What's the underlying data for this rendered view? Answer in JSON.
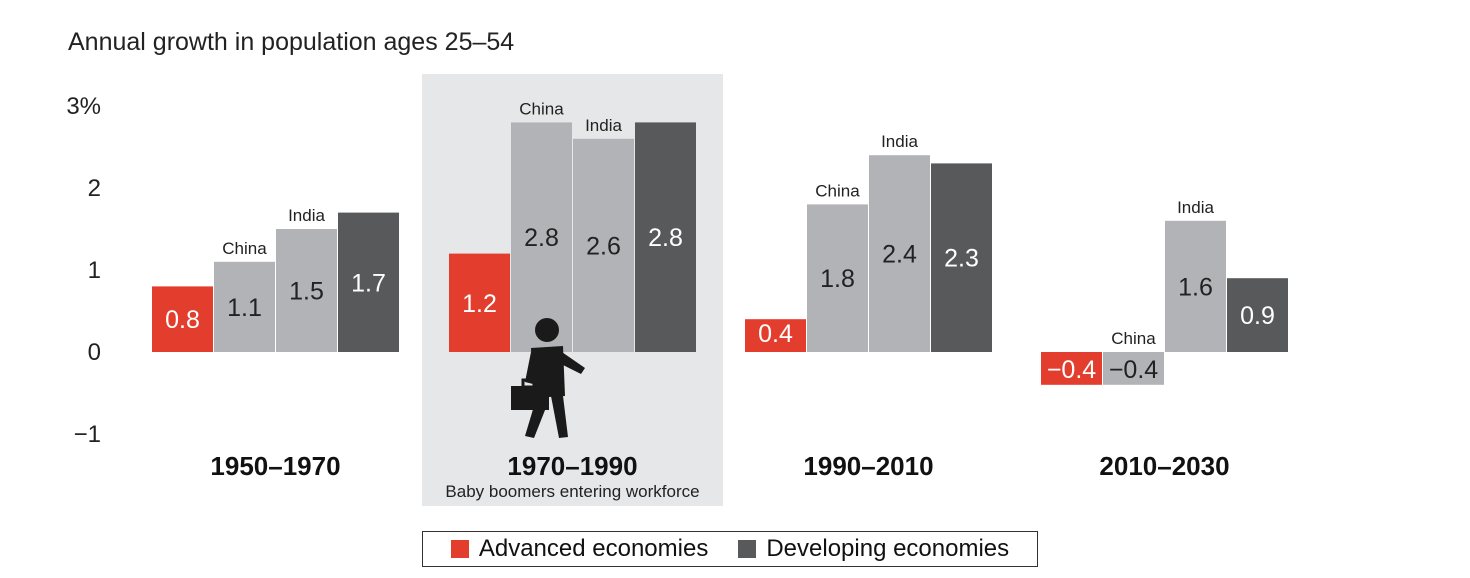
{
  "chart_data": {
    "type": "bar",
    "title": "Annual growth in population ages 25–54",
    "y_tick_labels": [
      "3%",
      "2",
      "1",
      "0",
      "−1"
    ],
    "y_ticks": [
      3,
      2,
      1,
      0,
      -1
    ],
    "ylim": [
      -1,
      3
    ],
    "colors": {
      "advanced": "#e23d2d",
      "china": "#b2b3b6",
      "india": "#b2b3b6",
      "developing": "#58595b",
      "highlight_bg": "#e6e7e8"
    },
    "groups": [
      {
        "period": "1950–1970",
        "subtitle": "",
        "highlight": false,
        "bars": [
          {
            "key": "advanced",
            "category_label": "",
            "value": 0.8,
            "value_label": "0.8"
          },
          {
            "key": "china",
            "category_label": "China",
            "value": 1.1,
            "value_label": "1.1"
          },
          {
            "key": "india",
            "category_label": "India",
            "value": 1.5,
            "value_label": "1.5"
          },
          {
            "key": "developing",
            "category_label": "",
            "value": 1.7,
            "value_label": "1.7"
          }
        ]
      },
      {
        "period": "1970–1990",
        "subtitle": "Baby boomers entering workforce",
        "highlight": true,
        "icon": "businessman-walking-icon",
        "bars": [
          {
            "key": "advanced",
            "category_label": "",
            "value": 1.2,
            "value_label": "1.2"
          },
          {
            "key": "china",
            "category_label": "China",
            "value": 2.8,
            "value_label": "2.8"
          },
          {
            "key": "india",
            "category_label": "India",
            "value": 2.6,
            "value_label": "2.6"
          },
          {
            "key": "developing",
            "category_label": "",
            "value": 2.8,
            "value_label": "2.8"
          }
        ]
      },
      {
        "period": "1990–2010",
        "subtitle": "",
        "highlight": false,
        "bars": [
          {
            "key": "advanced",
            "category_label": "",
            "value": 0.4,
            "value_label": "0.4"
          },
          {
            "key": "china",
            "category_label": "China",
            "value": 1.8,
            "value_label": "1.8"
          },
          {
            "key": "india",
            "category_label": "India",
            "value": 2.4,
            "value_label": "2.4"
          },
          {
            "key": "developing",
            "category_label": "",
            "value": 2.3,
            "value_label": "2.3"
          }
        ]
      },
      {
        "period": "2010–2030",
        "subtitle": "",
        "highlight": false,
        "bars": [
          {
            "key": "advanced",
            "category_label": "",
            "value": -0.4,
            "value_label": "−0.4"
          },
          {
            "key": "china",
            "category_label": "China",
            "value": -0.4,
            "value_label": "−0.4"
          },
          {
            "key": "india",
            "category_label": "India",
            "value": 1.6,
            "value_label": "1.6"
          },
          {
            "key": "developing",
            "category_label": "",
            "value": 0.9,
            "value_label": "0.9"
          }
        ]
      }
    ],
    "legend": {
      "position": "bottom-center",
      "entries": [
        {
          "label": "Advanced economies",
          "color": "#e23d2d"
        },
        {
          "label": "Developing economies",
          "color": "#58595b"
        }
      ]
    }
  }
}
